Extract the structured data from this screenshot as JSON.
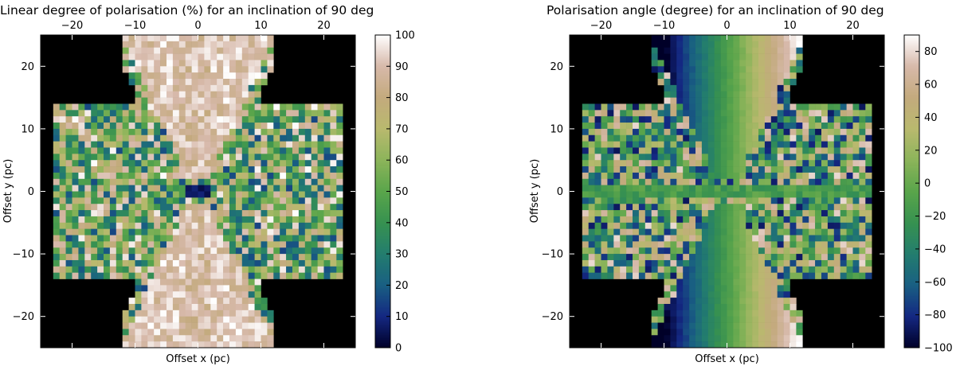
{
  "chart_data": [
    {
      "type": "heatmap",
      "title": "Linear degree of polarisation (%) for an inclination of 90 deg",
      "xlabel": "Offset x (pc)",
      "ylabel": "Offset y (pc)",
      "xlim": [
        -25,
        25
      ],
      "ylim": [
        -25,
        25
      ],
      "x_top_ticks": [
        -20,
        -10,
        0,
        10,
        20
      ],
      "y_ticks": [
        20,
        10,
        0,
        -10,
        -20
      ],
      "colorbar": {
        "min": 0,
        "max": 100,
        "ticks": [
          100,
          90,
          80,
          70,
          60,
          50,
          40,
          30,
          20,
          10,
          0
        ],
        "colormap": "gist_earth"
      },
      "background": "#000000",
      "quantity": "degree"
    },
    {
      "type": "heatmap",
      "title": "Polarisation angle (degree) for an inclination of 90 deg",
      "xlabel": "Offset x (pc)",
      "ylabel": "Offset y (pc)",
      "xlim": [
        -25,
        25
      ],
      "ylim": [
        -25,
        25
      ],
      "x_top_ticks": [
        -20,
        -10,
        0,
        10,
        20
      ],
      "y_ticks": [
        20,
        10,
        0,
        -10,
        -20
      ],
      "colorbar": {
        "min": -100,
        "max": 90,
        "ticks": [
          80,
          60,
          40,
          20,
          0,
          -20,
          -40,
          -60,
          -80,
          -100
        ],
        "colormap": "gist_earth"
      },
      "background": "#000000",
      "quantity": "angle"
    }
  ]
}
